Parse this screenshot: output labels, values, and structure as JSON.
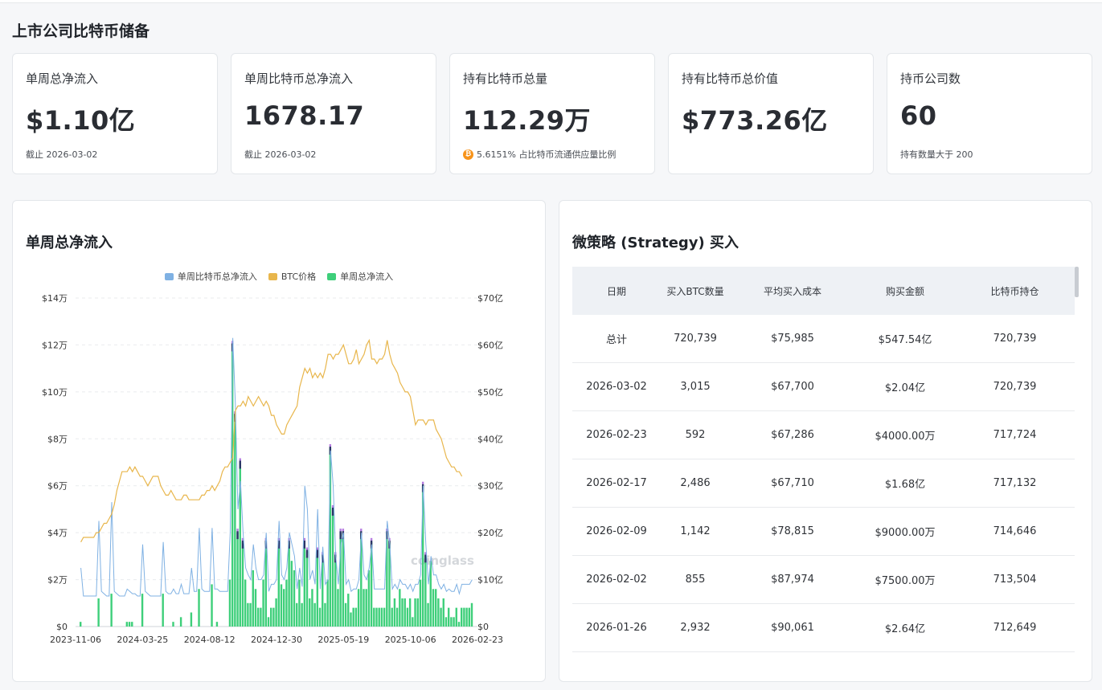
{
  "page_title": "上市公司比特币储备",
  "cards": [
    {
      "label": "单周总净流入",
      "value": "$1.10亿",
      "sub": "截止 2026-03-02",
      "icon": ""
    },
    {
      "label": "单周比特币总净流入",
      "value": "1678.17",
      "sub": "截止 2026-03-02",
      "icon": ""
    },
    {
      "label": "持有比特币总量",
      "value": "112.29万",
      "sub": "5.6151% 占比特币流通供应量比例",
      "icon": "bitcoin-icon"
    },
    {
      "label": "持有比特币总价值",
      "value": "$773.26亿",
      "sub": "",
      "icon": ""
    },
    {
      "label": "持币公司数",
      "value": "60",
      "sub": "持有数量大于 200",
      "icon": ""
    }
  ],
  "chart_panel": {
    "title": "单周总净流入",
    "watermark": "coinglass"
  },
  "chart_data": {
    "type": "bar",
    "legend": [
      "单周比特币总净流入",
      "BTC价格",
      "单周总净流入"
    ],
    "colors": {
      "btc_flow": "#7fb1e3",
      "btc_price": "#e8b64c",
      "usd_flow": "#3ecf7a",
      "dark": "#2b3566",
      "purple": "#b57be0"
    },
    "x_ticks": [
      "2023-11-06",
      "2024-03-25",
      "2024-08-12",
      "2024-12-30",
      "2025-05-19",
      "2025-10-06",
      "2026-02-23"
    ],
    "y_left_ticks": [
      "$0",
      "$2万",
      "$4万",
      "$6万",
      "$8万",
      "$10万",
      "$12万",
      "$14万"
    ],
    "y_right_ticks": [
      "$0",
      "$10亿",
      "$20亿",
      "$30亿",
      "$40亿",
      "$50亿",
      "$60亿",
      "$70亿"
    ],
    "y_left_range": [
      0,
      140000
    ],
    "y_right_range": [
      0,
      70
    ],
    "series": [
      {
        "name": "单周总净流入",
        "values": [
          1,
          0,
          0,
          0,
          0,
          0,
          0,
          6,
          0,
          0,
          0,
          0,
          7,
          0,
          0,
          0,
          0,
          0,
          1,
          1,
          1,
          0,
          0,
          0,
          7,
          0,
          0,
          0,
          0,
          0,
          0,
          0,
          7,
          0,
          0,
          0,
          1,
          0,
          0,
          2,
          0,
          0,
          0,
          3,
          0,
          0,
          8,
          0,
          0,
          0,
          0,
          9,
          0,
          1,
          0,
          0,
          0,
          0,
          10,
          60,
          45,
          20,
          35,
          18,
          10,
          5,
          5,
          12,
          8,
          4,
          4,
          10,
          18,
          2,
          4,
          4,
          6,
          18,
          9,
          8,
          10,
          18,
          14,
          12,
          5,
          10,
          5,
          18,
          16,
          6,
          8,
          5,
          16,
          4,
          15,
          5,
          10,
          38,
          25,
          15,
          8,
          20,
          20,
          5,
          7,
          3,
          4,
          4,
          8,
          20,
          8,
          8,
          12,
          18,
          4,
          4,
          4,
          4,
          4,
          20,
          18,
          4,
          6,
          4,
          8,
          6,
          6,
          4,
          6,
          2,
          6,
          6,
          10,
          30,
          15,
          5,
          14,
          8,
          8,
          6,
          4,
          6,
          2,
          4,
          2,
          2,
          4,
          1,
          4,
          4,
          4,
          4,
          5
        ]
      },
      {
        "name": "单周比特币总净流入",
        "values": [
          25000,
          13000,
          13000,
          13000,
          13000,
          13000,
          13000,
          45000,
          15000,
          14000,
          13000,
          13000,
          53000,
          15000,
          14000,
          13000,
          13000,
          13000,
          16000,
          15000,
          14000,
          14000,
          13000,
          13000,
          35000,
          15000,
          14000,
          13000,
          13000,
          13000,
          13000,
          13000,
          36000,
          15000,
          14000,
          14000,
          16000,
          14000,
          14000,
          18000,
          14000,
          14000,
          14000,
          25000,
          15000,
          15000,
          42000,
          16000,
          15000,
          15000,
          15000,
          42000,
          16000,
          16000,
          15000,
          15000,
          15000,
          15000,
          40000,
          123000,
          95000,
          50000,
          62000,
          40000,
          25000,
          22000,
          20000,
          35000,
          25000,
          20000,
          20000,
          22000,
          40000,
          15000,
          18000,
          18000,
          20000,
          45000,
          22000,
          20000,
          25000,
          40000,
          35000,
          30000,
          16000,
          25000,
          17000,
          60000,
          50000,
          20000,
          24000,
          18000,
          50000,
          16000,
          34000,
          18000,
          20000,
          75000,
          60000,
          30000,
          18000,
          35000,
          40000,
          18000,
          20000,
          15000,
          16000,
          16000,
          20000,
          40000,
          22000,
          20000,
          25000,
          35000,
          16000,
          16000,
          16000,
          16000,
          16000,
          45000,
          35000,
          16000,
          18000,
          16000,
          20000,
          18000,
          18000,
          16000,
          18000,
          15000,
          18000,
          18000,
          22000,
          60000,
          35000,
          18000,
          30000,
          22000,
          22000,
          18000,
          16000,
          18000,
          15000,
          16000,
          15000,
          15000,
          18000,
          14000,
          18000,
          18000,
          18000,
          18000,
          20000
        ]
      },
      {
        "name": "BTC价格",
        "values": [
          18,
          19,
          19,
          19,
          19,
          19,
          20,
          20,
          21,
          22,
          22,
          23,
          24,
          26,
          29,
          31,
          33,
          33,
          33,
          34,
          33,
          34,
          33,
          32,
          32,
          31,
          30,
          31,
          32,
          32,
          32,
          30,
          29,
          28,
          28,
          29,
          28,
          27,
          27,
          27,
          28,
          28,
          27,
          27,
          27,
          27,
          27,
          28,
          28,
          29,
          29,
          30,
          29,
          30,
          31,
          33,
          34,
          34,
          35,
          36,
          46,
          47,
          47,
          48,
          47,
          49,
          48,
          47,
          48,
          49,
          48,
          47,
          48,
          47,
          45,
          45,
          43,
          42,
          41,
          41,
          43,
          44,
          45,
          46,
          47,
          51,
          53,
          55,
          54,
          55,
          53,
          54,
          53,
          54,
          53,
          55,
          58,
          58,
          57,
          58,
          58,
          59,
          60,
          58,
          56,
          56,
          57,
          59,
          56,
          57,
          58,
          60,
          61,
          57,
          57,
          56,
          57,
          57,
          58,
          61,
          58,
          56,
          55,
          54,
          52,
          51,
          50,
          50,
          49,
          46,
          43,
          44,
          44,
          44,
          43,
          44,
          44,
          44,
          42,
          41,
          40,
          38,
          36,
          35,
          34,
          34,
          33,
          33,
          32
        ]
      }
    ]
  },
  "table_panel": {
    "title": "微策略 (Strategy) 买入",
    "columns": [
      "日期",
      "买入BTC数量",
      "平均买入成本",
      "购买金额",
      "比特币持仓"
    ],
    "rows": [
      [
        "总计",
        "720,739",
        "$75,985",
        "$547.54亿",
        "720,739"
      ],
      [
        "2026-03-02",
        "3,015",
        "$67,700",
        "$2.04亿",
        "720,739"
      ],
      [
        "2026-02-23",
        "592",
        "$67,286",
        "$4000.00万",
        "717,724"
      ],
      [
        "2026-02-17",
        "2,486",
        "$67,710",
        "$1.68亿",
        "717,132"
      ],
      [
        "2026-02-09",
        "1,142",
        "$78,815",
        "$9000.00万",
        "714,646"
      ],
      [
        "2026-02-02",
        "855",
        "$87,974",
        "$7500.00万",
        "713,504"
      ],
      [
        "2026-01-26",
        "2,932",
        "$90,061",
        "$2.64亿",
        "712,649"
      ]
    ]
  }
}
